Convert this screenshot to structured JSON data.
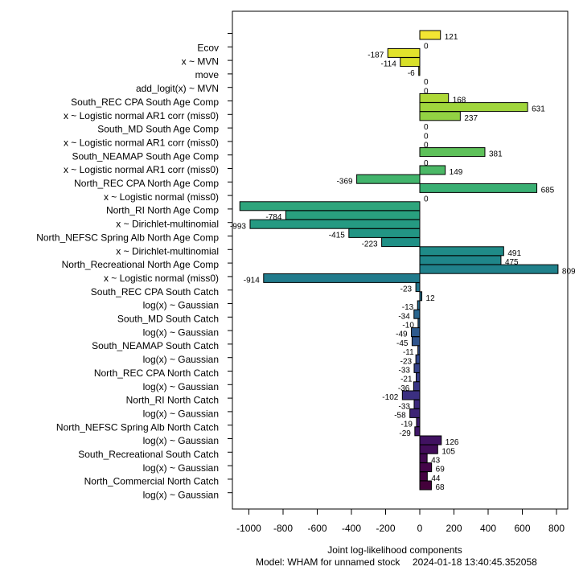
{
  "chart_data": {
    "type": "bar",
    "orientation": "horizontal",
    "xlabel": "Joint log-likelihood components",
    "subtitle_model": "Model: WHAM for unnamed stock",
    "subtitle_timestamp": "2024-01-18 13:40:45.352058",
    "xlim": [
      -1090,
      850
    ],
    "x_ticks": [
      -1000,
      -800,
      -600,
      -400,
      -200,
      0,
      200,
      400,
      600,
      800
    ],
    "x_tick_labels": [
      "-1000",
      "-800",
      "-600",
      "-400",
      "-200",
      "0",
      "200",
      "400",
      "600",
      "800"
    ],
    "grid": false,
    "legend": "none",
    "bars": [
      {
        "value": 121,
        "label": "121",
        "color": "#f3e533"
      },
      {
        "value": 0,
        "label": "0",
        "color": "#e8e42f"
      },
      {
        "value": -187,
        "label": "-187",
        "color": "#e1e22c"
      },
      {
        "value": -114,
        "label": "-114",
        "color": "#d8e029"
      },
      {
        "value": -6,
        "label": "-6",
        "color": "#d1df27"
      },
      {
        "value": 0,
        "label": "0",
        "color": "#c9dd25"
      },
      {
        "value": 0,
        "label": "0",
        "color": "#c1db24"
      },
      {
        "value": 168,
        "label": "168",
        "color": "#aed938"
      },
      {
        "value": 631,
        "label": "631",
        "color": "#a0d63d"
      },
      {
        "value": 237,
        "label": "237",
        "color": "#92d243"
      },
      {
        "value": 0,
        "label": "0",
        "color": "#84ce48"
      },
      {
        "value": 0,
        "label": "0",
        "color": "#77ca4d"
      },
      {
        "value": 0,
        "label": "0",
        "color": "#6bc652"
      },
      {
        "value": 381,
        "label": "381",
        "color": "#5ec15a"
      },
      {
        "value": 0,
        "label": "0",
        "color": "#54bd60"
      },
      {
        "value": 149,
        "label": "149",
        "color": "#4bb866"
      },
      {
        "value": -369,
        "label": "-369",
        "color": "#42b46c"
      },
      {
        "value": 685,
        "label": "685",
        "color": "#3aaf73"
      },
      {
        "value": 0,
        "label": "0",
        "color": "#34aa78"
      },
      {
        "value": -1053,
        "label": "",
        "color": "#2ea57c"
      },
      {
        "value": -784,
        "label": "-784",
        "color": "#29a07f"
      },
      {
        "value": -993,
        "label": "-993",
        "color": "#259a82"
      },
      {
        "value": -415,
        "label": "-415",
        "color": "#229584"
      },
      {
        "value": -223,
        "label": "-223",
        "color": "#209086"
      },
      {
        "value": 491,
        "label": "491",
        "color": "#1f8b88"
      },
      {
        "value": 475,
        "label": "475",
        "color": "#1f868a"
      },
      {
        "value": 809,
        "label": "809",
        "color": "#20818b"
      },
      {
        "value": -914,
        "label": "-914",
        "color": "#217b8c"
      },
      {
        "value": -23,
        "label": "-23",
        "color": "#23768d"
      },
      {
        "value": 12,
        "label": "12",
        "color": "#25708d"
      },
      {
        "value": -13,
        "label": "-13",
        "color": "#276b8e"
      },
      {
        "value": -34,
        "label": "-34",
        "color": "#29658e"
      },
      {
        "value": -10,
        "label": "-10",
        "color": "#2b608e"
      },
      {
        "value": -49,
        "label": "-49",
        "color": "#2d5a8e"
      },
      {
        "value": -45,
        "label": "-45",
        "color": "#2f548d"
      },
      {
        "value": -11,
        "label": "-11",
        "color": "#314e8d"
      },
      {
        "value": -23,
        "label": "-23",
        "color": "#33488c"
      },
      {
        "value": -33,
        "label": "-33",
        "color": "#35428a"
      },
      {
        "value": -21,
        "label": "-21",
        "color": "#373c88"
      },
      {
        "value": -36,
        "label": "-36",
        "color": "#393585"
      },
      {
        "value": -102,
        "label": "-102",
        "color": "#3b2f81"
      },
      {
        "value": -33,
        "label": "-33",
        "color": "#3d297c"
      },
      {
        "value": -58,
        "label": "-58",
        "color": "#3e2376"
      },
      {
        "value": -19,
        "label": "-19",
        "color": "#3f1d70"
      },
      {
        "value": -29,
        "label": "-29",
        "color": "#401769"
      },
      {
        "value": 126,
        "label": "126",
        "color": "#411261"
      },
      {
        "value": 105,
        "label": "105",
        "color": "#420d59"
      },
      {
        "value": 43,
        "label": "43",
        "color": "#430951"
      },
      {
        "value": 69,
        "label": "69",
        "color": "#440549"
      },
      {
        "value": 44,
        "label": "44",
        "color": "#450242"
      },
      {
        "value": 68,
        "label": "68",
        "color": "#44013b"
      }
    ],
    "category_labels": [
      "Ecov",
      "x ~ MVN",
      "move",
      "add_logit(x) ~ MVN",
      "South_REC CPA South Age Comp",
      "x ~ Logistic normal AR1 corr (miss0)",
      "South_MD South Age Comp",
      "x ~ Logistic normal AR1 corr (miss0)",
      "South_NEAMAP South Age Comp",
      "x ~ Logistic normal AR1 corr (miss0)",
      "North_REC CPA North Age Comp",
      "x ~ Logistic normal (miss0)",
      "North_RI North Age Comp",
      "x ~ Dirichlet-multinomial",
      "North_NEFSC Spring Alb North Age Comp",
      "x ~ Dirichlet-multinomial",
      "North_Recreational North Age Comp",
      "x ~ Logistic normal (miss0)",
      "South_REC CPA South Catch",
      "log(x) ~ Gaussian",
      "South_MD South Catch",
      "log(x) ~ Gaussian",
      "South_NEAMAP South Catch",
      "log(x) ~ Gaussian",
      "North_REC CPA North Catch",
      "log(x) ~ Gaussian",
      "North_RI North Catch",
      "log(x) ~ Gaussian",
      "North_NEFSC Spring Alb North Catch",
      "log(x) ~ Gaussian",
      "South_Recreational South Catch",
      "log(x) ~ Gaussian",
      "North_Commercial North Catch",
      "log(x) ~ Gaussian"
    ]
  }
}
